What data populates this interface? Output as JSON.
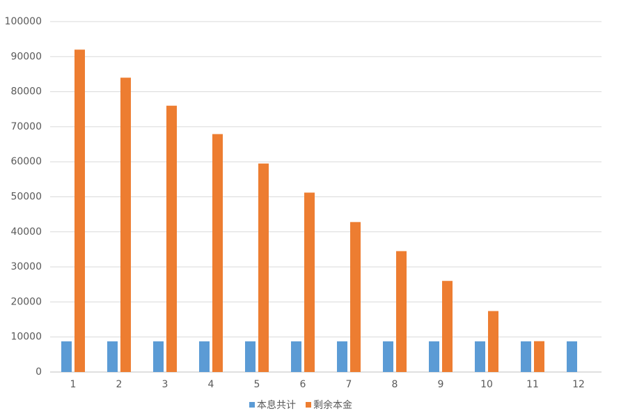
{
  "chart_data": {
    "type": "bar",
    "categories": [
      "1",
      "2",
      "3",
      "4",
      "5",
      "6",
      "7",
      "8",
      "9",
      "10",
      "11",
      "12"
    ],
    "series": [
      {
        "name": "本息共计",
        "color": "#5b9bd5",
        "values": [
          8750,
          8750,
          8750,
          8750,
          8750,
          8750,
          8750,
          8750,
          8750,
          8750,
          8750,
          8750
        ]
      },
      {
        "name": "剩余本金",
        "color": "#ed7d31",
        "values": [
          92000,
          84000,
          76000,
          67900,
          59500,
          51200,
          42800,
          34500,
          26000,
          17400,
          8800,
          0
        ]
      }
    ],
    "ylim": [
      0,
      100000
    ],
    "yticks": [
      0,
      10000,
      20000,
      30000,
      40000,
      50000,
      60000,
      70000,
      80000,
      90000,
      100000
    ],
    "grid": true,
    "legend": "bottom"
  }
}
